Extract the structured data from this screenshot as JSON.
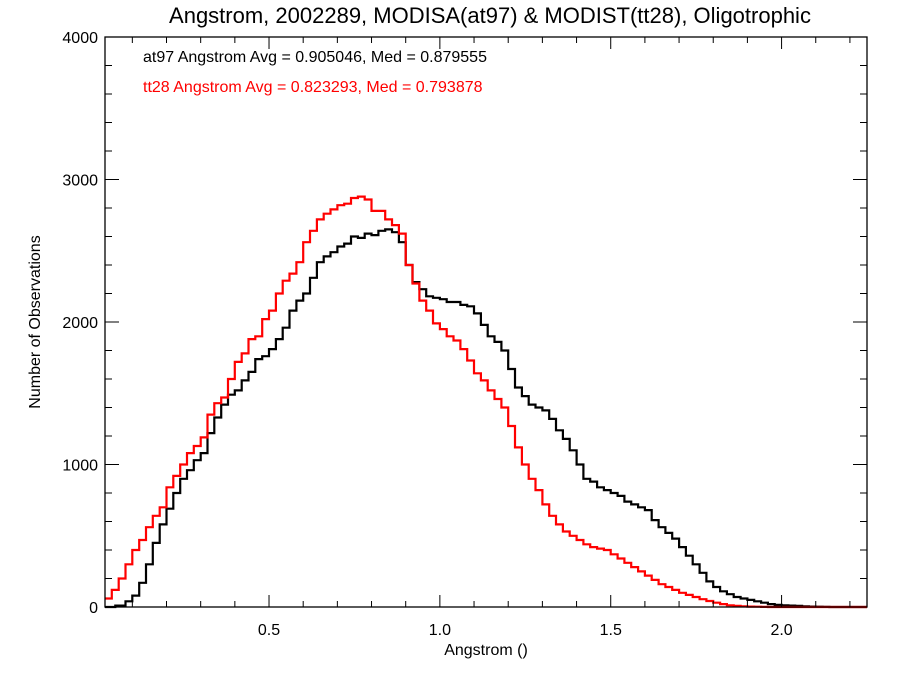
{
  "chart_data": {
    "type": "line",
    "title": "Angstrom, 2002289, MODISA(at97) & MODIST(tt28), Oligotrophic",
    "xlabel": "Angstrom ()",
    "ylabel": "Number of Observations",
    "xlim": [
      0.02,
      2.25
    ],
    "ylim": [
      0,
      4000
    ],
    "xticks": [
      0.5,
      1.0,
      1.5,
      2.0
    ],
    "xtick_labels": [
      "0.5",
      "1.0",
      "1.5",
      "2.0"
    ],
    "yticks": [
      0,
      1000,
      2000,
      3000,
      4000
    ],
    "ytick_labels": [
      "0",
      "1000",
      "2000",
      "3000",
      "4000"
    ],
    "grid": false,
    "step": true,
    "annotations": [
      {
        "text": "at97 Angstrom Avg = 0.905046, Med = 0.879555",
        "color": "#000000"
      },
      {
        "text": "tt28 Angstrom Avg = 0.823293, Med = 0.793878",
        "color": "#ff0000"
      }
    ],
    "series": [
      {
        "color": "#000000",
        "x": [
          0.02,
          0.05,
          0.08,
          0.1,
          0.12,
          0.14,
          0.16,
          0.18,
          0.2,
          0.22,
          0.24,
          0.26,
          0.28,
          0.3,
          0.32,
          0.34,
          0.36,
          0.38,
          0.4,
          0.42,
          0.44,
          0.46,
          0.48,
          0.5,
          0.52,
          0.54,
          0.56,
          0.58,
          0.6,
          0.62,
          0.64,
          0.66,
          0.68,
          0.7,
          0.72,
          0.74,
          0.76,
          0.78,
          0.8,
          0.82,
          0.84,
          0.86,
          0.88,
          0.9,
          0.92,
          0.94,
          0.96,
          0.98,
          1.0,
          1.02,
          1.04,
          1.06,
          1.08,
          1.1,
          1.12,
          1.14,
          1.16,
          1.18,
          1.2,
          1.22,
          1.24,
          1.26,
          1.28,
          1.3,
          1.32,
          1.34,
          1.36,
          1.38,
          1.4,
          1.42,
          1.44,
          1.46,
          1.48,
          1.5,
          1.52,
          1.54,
          1.56,
          1.58,
          1.6,
          1.62,
          1.64,
          1.66,
          1.68,
          1.7,
          1.72,
          1.74,
          1.76,
          1.78,
          1.8,
          1.82,
          1.84,
          1.86,
          1.88,
          1.9,
          1.92,
          1.94,
          1.96,
          1.98,
          2.0,
          2.02,
          2.04,
          2.06,
          2.08,
          2.1,
          2.12,
          2.14,
          2.16,
          2.2,
          2.25
        ],
        "y": [
          0,
          10,
          40,
          80,
          170,
          300,
          450,
          580,
          690,
          800,
          900,
          960,
          1030,
          1080,
          1220,
          1330,
          1420,
          1490,
          1520,
          1590,
          1650,
          1740,
          1760,
          1810,
          1880,
          1960,
          2080,
          2150,
          2200,
          2310,
          2420,
          2460,
          2490,
          2530,
          2550,
          2600,
          2590,
          2620,
          2610,
          2640,
          2650,
          2630,
          2560,
          2400,
          2280,
          2230,
          2180,
          2170,
          2160,
          2140,
          2140,
          2120,
          2110,
          2060,
          1980,
          1900,
          1860,
          1800,
          1670,
          1540,
          1480,
          1420,
          1400,
          1380,
          1320,
          1240,
          1180,
          1100,
          1000,
          900,
          880,
          840,
          820,
          800,
          780,
          740,
          720,
          700,
          680,
          610,
          560,
          520,
          480,
          420,
          360,
          300,
          240,
          180,
          140,
          110,
          90,
          70,
          60,
          50,
          40,
          30,
          20,
          15,
          12,
          10,
          8,
          5,
          3,
          2,
          1,
          0,
          0,
          0,
          0
        ]
      },
      {
        "color": "#ff0000",
        "x": [
          0.02,
          0.04,
          0.06,
          0.08,
          0.1,
          0.12,
          0.14,
          0.16,
          0.18,
          0.2,
          0.22,
          0.24,
          0.26,
          0.28,
          0.3,
          0.32,
          0.34,
          0.36,
          0.38,
          0.4,
          0.42,
          0.44,
          0.46,
          0.48,
          0.5,
          0.52,
          0.54,
          0.56,
          0.58,
          0.6,
          0.62,
          0.64,
          0.66,
          0.68,
          0.7,
          0.72,
          0.74,
          0.76,
          0.78,
          0.8,
          0.82,
          0.84,
          0.86,
          0.88,
          0.9,
          0.92,
          0.94,
          0.96,
          0.98,
          1.0,
          1.02,
          1.04,
          1.06,
          1.08,
          1.1,
          1.12,
          1.14,
          1.16,
          1.18,
          1.2,
          1.22,
          1.24,
          1.26,
          1.28,
          1.3,
          1.32,
          1.34,
          1.36,
          1.38,
          1.4,
          1.42,
          1.44,
          1.46,
          1.48,
          1.5,
          1.52,
          1.54,
          1.56,
          1.58,
          1.6,
          1.62,
          1.64,
          1.66,
          1.68,
          1.7,
          1.72,
          1.74,
          1.76,
          1.78,
          1.8,
          1.82,
          1.84,
          1.86,
          1.88,
          1.9,
          1.92,
          1.94,
          1.96,
          1.98,
          2.0,
          2.02,
          2.04,
          2.06,
          2.08,
          2.1,
          2.12,
          2.14,
          2.16,
          2.2,
          2.25
        ],
        "y": [
          60,
          120,
          200,
          300,
          400,
          470,
          560,
          640,
          700,
          840,
          920,
          1000,
          1080,
          1130,
          1190,
          1350,
          1430,
          1470,
          1600,
          1720,
          1780,
          1880,
          1900,
          2020,
          2080,
          2200,
          2290,
          2340,
          2420,
          2560,
          2640,
          2720,
          2760,
          2790,
          2820,
          2830,
          2870,
          2880,
          2860,
          2780,
          2780,
          2720,
          2680,
          2620,
          2400,
          2270,
          2150,
          2080,
          1990,
          1950,
          1900,
          1870,
          1810,
          1730,
          1640,
          1590,
          1520,
          1460,
          1400,
          1270,
          1120,
          1000,
          900,
          820,
          720,
          640,
          580,
          530,
          500,
          470,
          440,
          420,
          410,
          400,
          370,
          340,
          310,
          280,
          250,
          220,
          190,
          160,
          140,
          120,
          100,
          85,
          70,
          55,
          42,
          30,
          20,
          12,
          8,
          5,
          3,
          2,
          1,
          0,
          0,
          0,
          0,
          0,
          0,
          0,
          0,
          0,
          0,
          0,
          0,
          0
        ]
      }
    ]
  }
}
